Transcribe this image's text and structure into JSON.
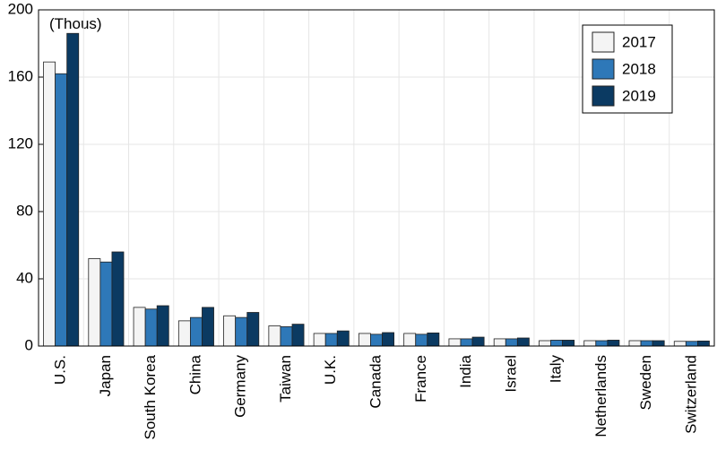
{
  "chart_data": {
    "type": "bar",
    "annotation": "(Thous)",
    "categories": [
      "U.S.",
      "Japan",
      "South Korea",
      "China",
      "Germany",
      "Taiwan",
      "U.K.",
      "Canada",
      "France",
      "India",
      "Israel",
      "Italy",
      "Netherlands",
      "Sweden",
      "Switzerland"
    ],
    "series": [
      {
        "name": "2017",
        "color": "#f4f4f4",
        "values": [
          169,
          52,
          23,
          15,
          18,
          12,
          7.5,
          7.5,
          7.5,
          4.3,
          4.3,
          3.2,
          3.2,
          3.2,
          2.8
        ]
      },
      {
        "name": "2018",
        "color": "#2e78b8",
        "values": [
          162,
          50,
          22,
          17,
          17,
          11.5,
          7.5,
          7,
          7,
          4.3,
          4.3,
          3.5,
          3.2,
          3.2,
          2.8
        ]
      },
      {
        "name": "2019",
        "color": "#0b3a62",
        "values": [
          186,
          56,
          24,
          23,
          20,
          13,
          9,
          8,
          7.8,
          5.3,
          4.8,
          3.5,
          3.5,
          3.2,
          3
        ]
      }
    ],
    "ylim": [
      0,
      200
    ],
    "yticks": [
      0,
      40,
      80,
      120,
      160,
      200
    ],
    "grid": true,
    "legend": "top-right"
  }
}
